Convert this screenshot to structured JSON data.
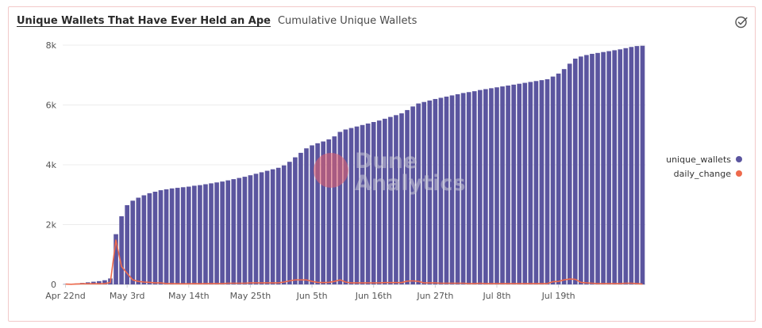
{
  "header": {
    "title": "Unique Wallets That Have Ever Held an Ape",
    "subtitle": "Cumulative Unique Wallets"
  },
  "icons": {
    "check": "check-circle-icon"
  },
  "watermark": {
    "line1": "Dune",
    "line2": "Analytics"
  },
  "colors": {
    "bars": "#5b559f",
    "line": "#ee6a4c",
    "grid": "#ececec",
    "axis": "#cfcfcf"
  },
  "chart_data": {
    "type": "bar",
    "title": "Unique Wallets That Have Ever Held an Ape",
    "subtitle": "Cumulative Unique Wallets",
    "ylim": [
      0,
      8000
    ],
    "y_ticks": [
      "0",
      "2k",
      "4k",
      "6k",
      "8k"
    ],
    "y_tick_values": [
      0,
      2000,
      4000,
      6000,
      8000
    ],
    "x_tick_labels": [
      "Apr 22nd",
      "May 3rd",
      "May 14th",
      "May 25th",
      "Jun 5th",
      "Jun 16th",
      "Jun 27th",
      "Jul 8th",
      "Jul 19th"
    ],
    "x_tick_day_index": [
      0,
      11,
      22,
      33,
      44,
      55,
      66,
      77,
      88
    ],
    "grid": true,
    "legend_position": "right",
    "start_date": "Apr 22nd",
    "series": [
      {
        "name": "unique_wallets",
        "type": "bar",
        "color": "#5b559f",
        "values": [
          10,
          15,
          30,
          50,
          70,
          90,
          110,
          140,
          200,
          1680,
          2280,
          2650,
          2800,
          2900,
          2980,
          3050,
          3100,
          3150,
          3180,
          3210,
          3230,
          3250,
          3270,
          3300,
          3320,
          3350,
          3380,
          3410,
          3440,
          3480,
          3520,
          3560,
          3600,
          3650,
          3700,
          3750,
          3800,
          3850,
          3900,
          3980,
          4100,
          4250,
          4400,
          4550,
          4650,
          4720,
          4780,
          4850,
          4950,
          5100,
          5180,
          5230,
          5280,
          5330,
          5380,
          5430,
          5480,
          5540,
          5600,
          5660,
          5720,
          5830,
          5950,
          6050,
          6100,
          6150,
          6200,
          6240,
          6280,
          6320,
          6360,
          6400,
          6430,
          6460,
          6500,
          6530,
          6560,
          6590,
          6620,
          6650,
          6680,
          6710,
          6740,
          6770,
          6800,
          6830,
          6860,
          6950,
          7050,
          7200,
          7380,
          7550,
          7620,
          7670,
          7710,
          7740,
          7770,
          7800,
          7830,
          7860,
          7900,
          7940,
          7970,
          7980
        ]
      },
      {
        "name": "daily_change",
        "type": "line",
        "color": "#ee6a4c",
        "values": [
          10,
          5,
          15,
          20,
          20,
          20,
          20,
          30,
          60,
          1480,
          600,
          370,
          150,
          100,
          80,
          70,
          50,
          50,
          30,
          30,
          20,
          20,
          20,
          30,
          20,
          30,
          30,
          30,
          30,
          40,
          40,
          40,
          40,
          50,
          50,
          50,
          50,
          50,
          50,
          80,
          120,
          150,
          150,
          150,
          100,
          70,
          60,
          70,
          100,
          150,
          80,
          50,
          50,
          50,
          50,
          50,
          50,
          60,
          60,
          60,
          60,
          110,
          120,
          100,
          50,
          50,
          50,
          40,
          40,
          40,
          40,
          40,
          30,
          30,
          40,
          30,
          30,
          30,
          30,
          30,
          30,
          30,
          30,
          30,
          30,
          30,
          30,
          90,
          100,
          150,
          180,
          170,
          70,
          50,
          40,
          30,
          30,
          30,
          30,
          30,
          40,
          40,
          30,
          10
        ]
      }
    ]
  }
}
